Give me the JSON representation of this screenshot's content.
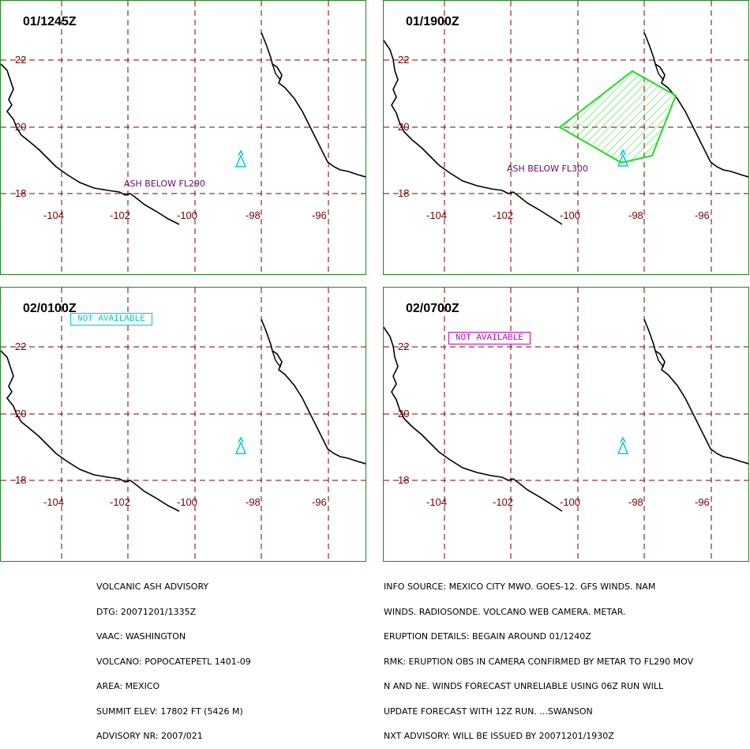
{
  "panels": [
    {
      "time": "01/1245Z",
      "ash_label": "ASH BELOW FL290",
      "not_available": ""
    },
    {
      "time": "01/1900Z",
      "ash_label": "ASH BELOW FL300",
      "not_available": ""
    },
    {
      "time": "02/0100Z",
      "ash_label": "",
      "not_available": "NOT AVAILABLE"
    },
    {
      "time": "02/0700Z",
      "ash_label": "",
      "not_available": "NOT AVAILABLE"
    }
  ],
  "lat_labels": [
    "22",
    "20",
    "18"
  ],
  "lon_labels": [
    "-104",
    "-102",
    "-100",
    "-98",
    "-96"
  ],
  "colors": {
    "border": "#1a8a1a",
    "grid": "#7a0000",
    "coast": "#000000",
    "volcano": "#00c8d8",
    "ash_polygon": "#22dd22",
    "ash_label": "#6a0a6a",
    "na_cyan": "#00c8d8",
    "na_magenta": "#c000c0"
  },
  "advisory_left": [
    "VOLCANIC ASH ADVISORY",
    "DTG: 20071201/1335Z",
    "VAAC: WASHINGTON",
    "VOLCANO: POPOCATEPETL 1401-09",
    "AREA: MEXICO",
    "SUMMIT ELEV: 17802 FT (5426 M)",
    "ADVISORY NR: 2007/021"
  ],
  "advisory_right": [
    "INFO SOURCE: MEXICO CITY MWO. GOES-12. GFS WINDS. NAM",
    "WINDS. RADIOSONDE. VOLCANO WEB CAMERA. METAR.",
    "ERUPTION DETAILS: BEGAIN AROUND 01/1240Z",
    "RMK: ERUPTION OBS IN CAMERA CONFIRMED BY METAR TO FL290 MOV",
    "N AND NE. WINDS FORECAST UNRELIABLE USING 06Z RUN WILL",
    "UPDATE FORECAST WITH 12Z RUN. ...SWANSON",
    "NXT ADVISORY: WILL BE ISSUED BY 20071201/1930Z"
  ]
}
